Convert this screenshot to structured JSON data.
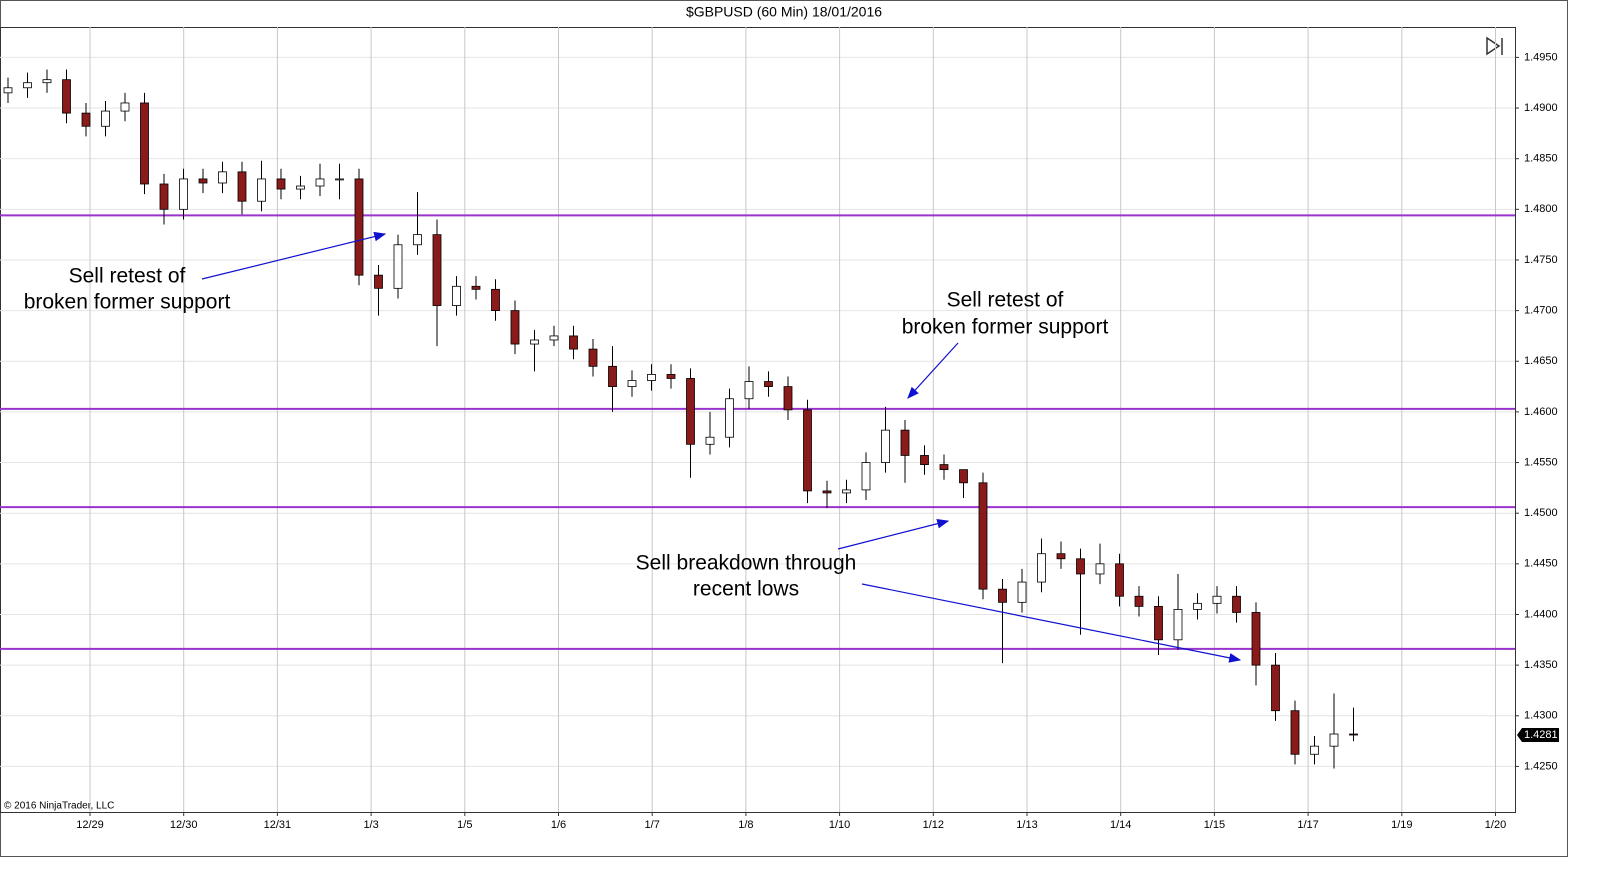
{
  "chart_data": {
    "type": "candlestick",
    "title": "$GBPUSD (60 Min)  18/01/2016",
    "credit": "© 2016 NinjaTrader, LLC",
    "xtick_labels": [
      "12/29",
      "12/30",
      "12/31",
      "1/3",
      "1/5",
      "1/6",
      "1/7",
      "1/8",
      "1/10",
      "1/12",
      "1/13",
      "1/14",
      "1/15",
      "1/17",
      "1/19",
      "1/20"
    ],
    "open": [
      1.4915,
      1.492,
      1.4925,
      1.4928,
      1.4895,
      1.4882,
      1.4897,
      1.4905,
      1.4825,
      1.48,
      1.483,
      1.4826,
      1.4837,
      1.4808,
      1.483,
      1.482,
      1.4823,
      1.483,
      1.483,
      1.4735,
      1.4722,
      1.4765,
      1.4775,
      1.4705,
      1.4724,
      1.4721,
      1.47,
      1.4667,
      1.4671,
      1.4675,
      1.4662,
      1.4645,
      1.4625,
      1.4631,
      1.4637,
      1.4633,
      1.4568,
      1.4575,
      1.4613,
      1.463,
      1.4625,
      1.4602,
      1.4522,
      1.452,
      1.4523,
      1.455,
      1.4582,
      1.4557,
      1.4548,
      1.4543,
      1.453,
      1.4425,
      1.4412,
      1.4432,
      1.446,
      1.4455,
      1.444,
      1.445,
      1.4418,
      1.4408,
      1.4375,
      1.4405,
      1.4411,
      1.4418,
      1.4402,
      1.435,
      1.4305,
      1.4262,
      1.427,
      1.4282
    ],
    "high": [
      1.493,
      1.4935,
      1.4938,
      1.4938,
      1.4905,
      1.4907,
      1.4915,
      1.4915,
      1.4835,
      1.484,
      1.484,
      1.4847,
      1.4847,
      1.4848,
      1.484,
      1.4833,
      1.4845,
      1.4845,
      1.484,
      1.4745,
      1.4775,
      1.4817,
      1.479,
      1.4734,
      1.4734,
      1.4731,
      1.471,
      1.4681,
      1.4685,
      1.4685,
      1.4672,
      1.4665,
      1.4641,
      1.4647,
      1.4647,
      1.4643,
      1.46,
      1.4623,
      1.4645,
      1.464,
      1.4635,
      1.4612,
      1.4532,
      1.4533,
      1.456,
      1.4605,
      1.4592,
      1.4567,
      1.4558,
      1.454,
      1.454,
      1.4435,
      1.4445,
      1.4475,
      1.4472,
      1.4465,
      1.447,
      1.446,
      1.4428,
      1.4418,
      1.444,
      1.4421,
      1.4428,
      1.4428,
      1.4412,
      1.4362,
      1.4315,
      1.428,
      1.4322,
      1.4308
    ],
    "low": [
      1.4905,
      1.491,
      1.4915,
      1.4885,
      1.4872,
      1.4872,
      1.4887,
      1.4815,
      1.4785,
      1.479,
      1.4816,
      1.4816,
      1.4795,
      1.4798,
      1.481,
      1.481,
      1.4813,
      1.481,
      1.4725,
      1.4695,
      1.4712,
      1.4755,
      1.4665,
      1.4695,
      1.4711,
      1.469,
      1.4657,
      1.464,
      1.4665,
      1.4652,
      1.4635,
      1.46,
      1.4615,
      1.4621,
      1.4623,
      1.4535,
      1.4558,
      1.4565,
      1.4603,
      1.4615,
      1.4592,
      1.451,
      1.4505,
      1.451,
      1.4513,
      1.454,
      1.453,
      1.4538,
      1.4533,
      1.4515,
      1.4415,
      1.4352,
      1.4402,
      1.4422,
      1.4445,
      1.438,
      1.443,
      1.4408,
      1.4398,
      1.436,
      1.4365,
      1.4395,
      1.4401,
      1.4392,
      1.433,
      1.4295,
      1.4252,
      1.4252,
      1.4248,
      1.4275
    ],
    "close": [
      1.492,
      1.4925,
      1.4928,
      1.4895,
      1.4882,
      1.4897,
      1.4905,
      1.4825,
      1.48,
      1.483,
      1.4826,
      1.4837,
      1.4808,
      1.483,
      1.482,
      1.4823,
      1.483,
      1.483,
      1.4735,
      1.4722,
      1.4765,
      1.4775,
      1.4705,
      1.4724,
      1.4721,
      1.47,
      1.4667,
      1.4671,
      1.4675,
      1.4662,
      1.4645,
      1.4625,
      1.4631,
      1.4637,
      1.4633,
      1.4568,
      1.4575,
      1.4613,
      1.463,
      1.4625,
      1.4602,
      1.4522,
      1.452,
      1.4523,
      1.455,
      1.4582,
      1.4557,
      1.4548,
      1.4543,
      1.453,
      1.4425,
      1.4412,
      1.4432,
      1.446,
      1.4455,
      1.444,
      1.445,
      1.4418,
      1.4408,
      1.4375,
      1.4405,
      1.4411,
      1.4418,
      1.4402,
      1.435,
      1.4305,
      1.4262,
      1.427,
      1.4282,
      1.4281
    ],
    "up_color": "#ffffff",
    "down_color": "#8b1a1a",
    "wick_color": "#000000",
    "ylim": [
      1.4205,
      1.498
    ],
    "yticks": [
      {
        "value": 1.425,
        "label": "1.4250"
      },
      {
        "value": 1.43,
        "label": "1.4300"
      },
      {
        "value": 1.435,
        "label": "1.4350"
      },
      {
        "value": 1.44,
        "label": "1.4400"
      },
      {
        "value": 1.445,
        "label": "1.4450"
      },
      {
        "value": 1.45,
        "label": "1.4500"
      },
      {
        "value": 1.455,
        "label": "1.4550"
      },
      {
        "value": 1.46,
        "label": "1.4600"
      },
      {
        "value": 1.465,
        "label": "1.4650"
      },
      {
        "value": 1.47,
        "label": "1.4700"
      },
      {
        "value": 1.475,
        "label": "1.4750"
      },
      {
        "value": 1.48,
        "label": "1.4800"
      },
      {
        "value": 1.485,
        "label": "1.4850"
      },
      {
        "value": 1.49,
        "label": "1.4900"
      },
      {
        "value": 1.495,
        "label": "1.4950"
      }
    ],
    "grid": true,
    "hlines": [
      1.4794,
      1.4603,
      1.4506,
      1.4366
    ],
    "hline_color": "#9933cc",
    "annotations": [
      {
        "lines": [
          "Sell retest of",
          "broken former support"
        ]
      },
      {
        "lines": [
          "Sell retest of",
          "broken former support"
        ]
      },
      {
        "lines": [
          "Sell breakdown through",
          "recent lows"
        ]
      }
    ]
  }
}
